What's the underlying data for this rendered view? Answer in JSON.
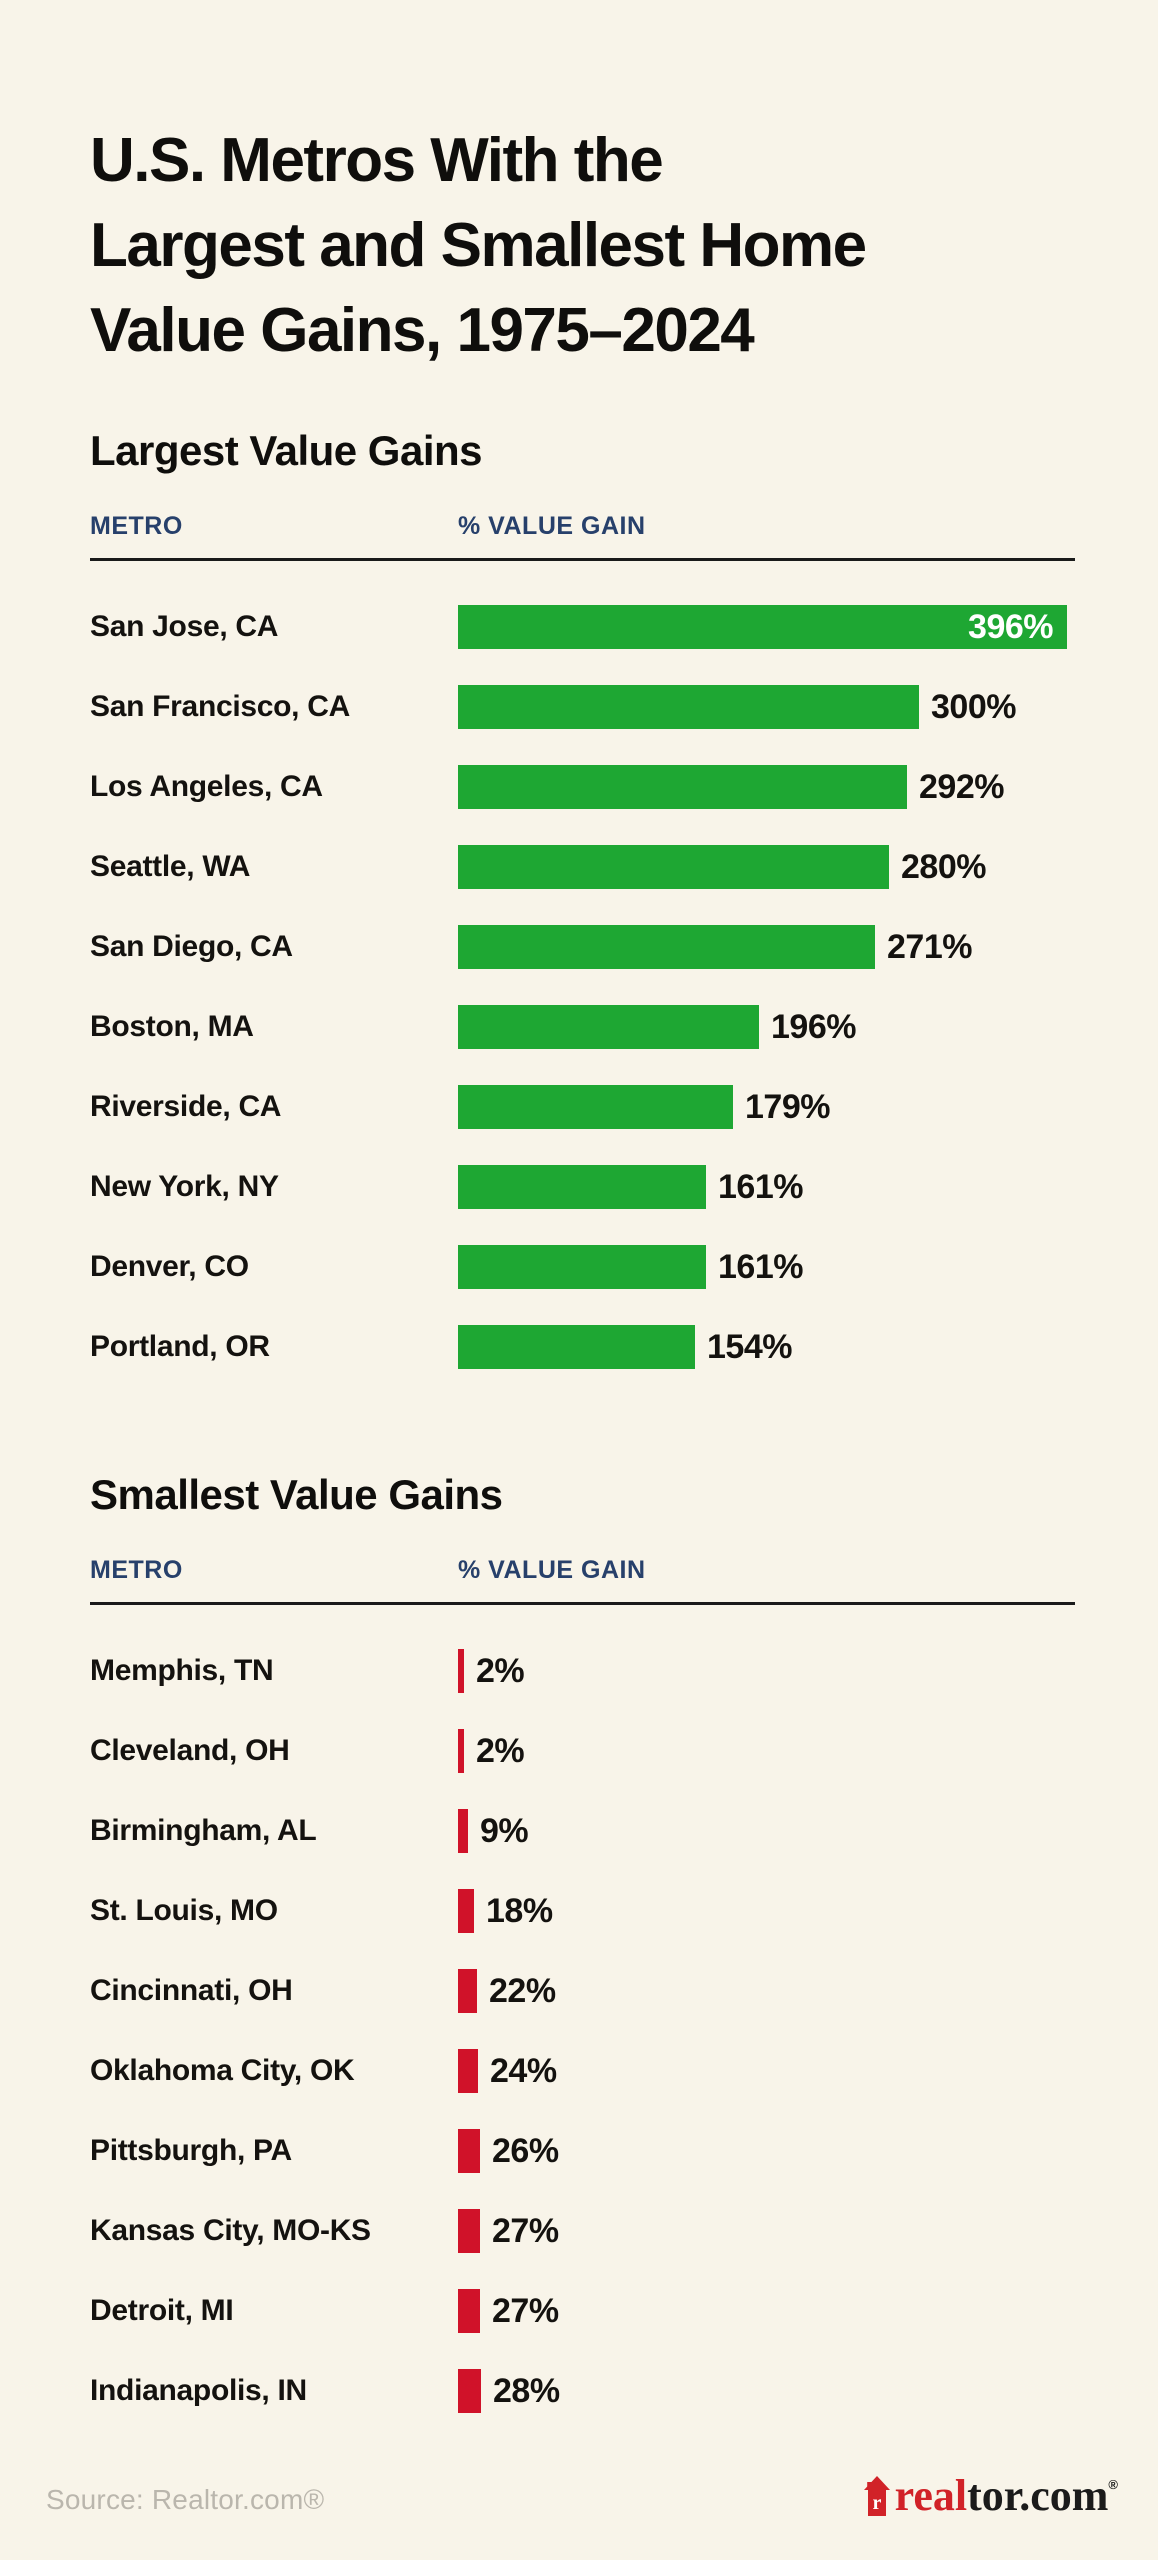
{
  "page": {
    "title_lines": [
      "U.S. Metros With the",
      "Largest and Smallest Home",
      "Value Gains, 1975–2024"
    ]
  },
  "chart_data": [
    {
      "type": "bar",
      "direction": "horizontal",
      "title": "Largest Value Gains",
      "col_headers": {
        "metro": "METRO",
        "value": "% VALUE GAIN"
      },
      "bar_color": "#1ea733",
      "unit": "%",
      "categories": [
        "San Jose, CA",
        "San Francisco, CA",
        "Los Angeles, CA",
        "Seattle, WA",
        "San Diego, CA",
        "Boston, MA",
        "Riverside, CA",
        "New York, NY",
        "Denver, CO",
        "Portland, OR"
      ],
      "values": [
        396,
        300,
        292,
        280,
        271,
        196,
        179,
        161,
        161,
        154
      ],
      "xlim": [
        0,
        396
      ],
      "label_inside_index": 0,
      "px": {
        "scale": 1.538,
        "base": 0,
        "min": 3
      }
    },
    {
      "type": "bar",
      "direction": "horizontal",
      "title": "Smallest Value Gains",
      "col_headers": {
        "metro": "METRO",
        "value": "% VALUE GAIN"
      },
      "bar_color": "#d01229",
      "unit": "%",
      "categories": [
        "Memphis, TN",
        "Cleveland, OH",
        "Birmingham, AL",
        "St. Louis, MO",
        "Cincinnati, OH",
        "Oklahoma City, OK",
        "Pittsburgh, PA",
        "Kansas City, MO-KS",
        "Detroit, MI",
        "Indianapolis, IN"
      ],
      "values": [
        2,
        2,
        9,
        18,
        22,
        24,
        26,
        27,
        27,
        28
      ],
      "xlim": [
        0,
        396
      ],
      "label_inside_index": -1,
      "px": {
        "scale": 0.68,
        "base": 4,
        "min": 6
      }
    }
  ],
  "footer": {
    "source": "Source: Realtor.com®",
    "logo": {
      "house_letter": "r",
      "prefix": "real",
      "suffix": "tor.com",
      "reg": "®"
    }
  }
}
